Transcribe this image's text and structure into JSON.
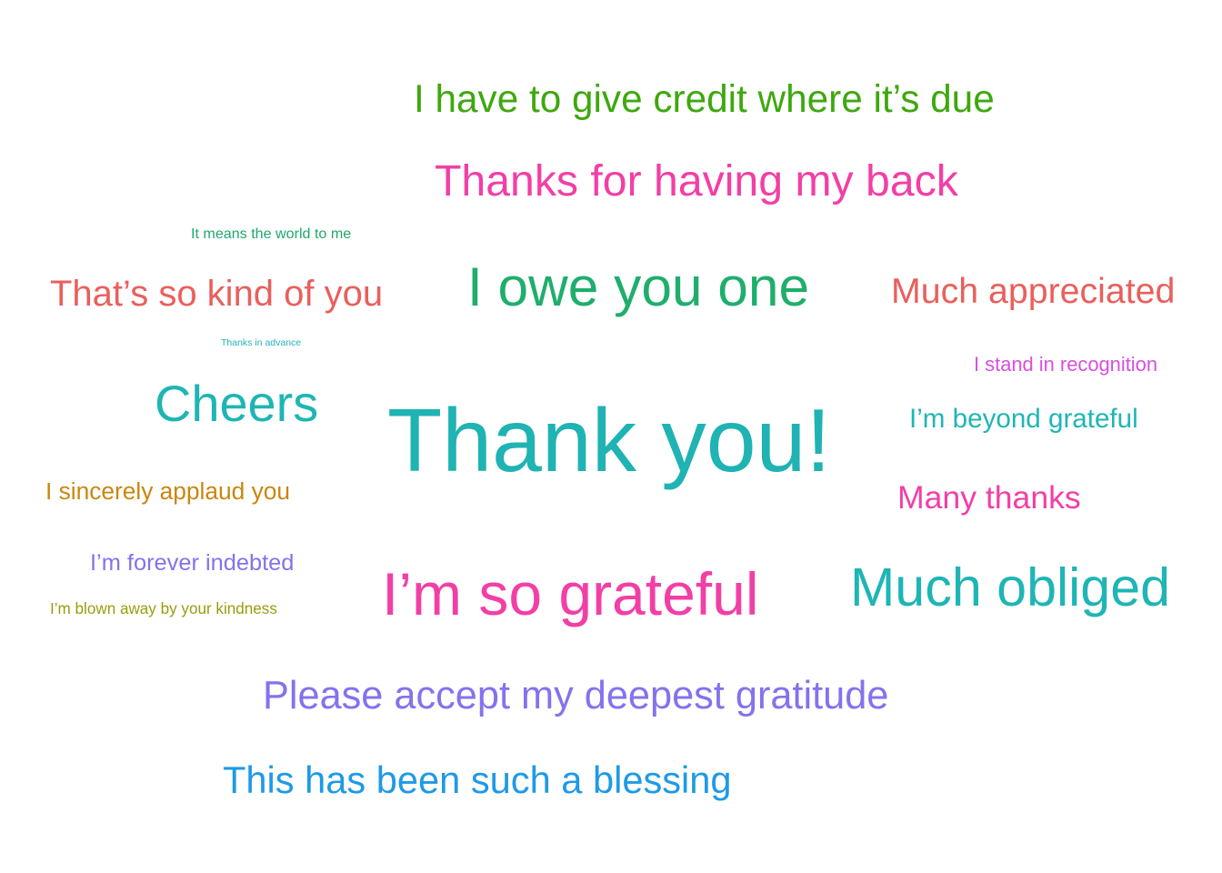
{
  "words": [
    {
      "text": "I have to give credit where it’s due",
      "color": "#3ea80e"
    },
    {
      "text": "Thanks for having my back",
      "color": "#f23fa6"
    },
    {
      "text": "It means the world to me",
      "color": "#1fa86b"
    },
    {
      "text": "That’s so kind of you",
      "color": "#ea5f5c"
    },
    {
      "text": "I owe you one",
      "color": "#1fae6c"
    },
    {
      "text": "Much appreciated",
      "color": "#ea5f5c"
    },
    {
      "text": "Thanks in advance",
      "color": "#22b3bf"
    },
    {
      "text": "I stand in recognition",
      "color": "#d94ee0"
    },
    {
      "text": "Cheers",
      "color": "#1fb5b5"
    },
    {
      "text": "Thank you!",
      "color": "#1fb3b3"
    },
    {
      "text": "I’m beyond grateful",
      "color": "#1fb5b5"
    },
    {
      "text": "I sincerely applaud you",
      "color": "#c9860f"
    },
    {
      "text": "Many thanks",
      "color": "#f23fa6"
    },
    {
      "text": "I’m forever indebted",
      "color": "#8472ee"
    },
    {
      "text": "I’m so grateful",
      "color": "#f23fa6"
    },
    {
      "text": "Much obliged",
      "color": "#1fb5b5"
    },
    {
      "text": "I’m blown away by your kindness",
      "color": "#999d0d"
    },
    {
      "text": "Please accept my deepest gratitude",
      "color": "#8472ee"
    },
    {
      "text": "This has been such a blessing",
      "color": "#1e9ae6"
    }
  ]
}
